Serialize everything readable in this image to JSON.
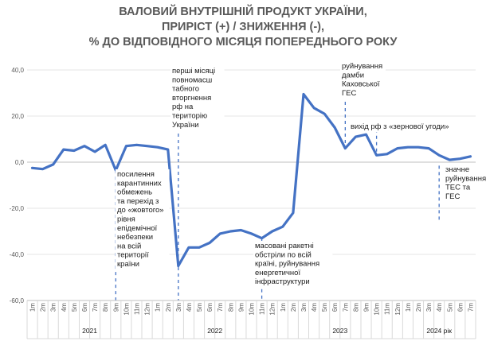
{
  "chart_data": {
    "type": "line",
    "title_lines": [
      "ВАЛОВИЙ ВНУТРІШНІЙ ПРОДУКТ УКРАЇНИ,",
      "ПРИРІСТ (+) / ЗНИЖЕННЯ (-),",
      "%  ДО ВІДПОВІДНОГО МІСЯЦЯ ПОПЕРЕДНЬОГО РОКУ"
    ],
    "ylim": [
      -60,
      40
    ],
    "y_ticks": [
      "40,0",
      "20,0",
      "0,0",
      "-20,0",
      "-40,0",
      "-60,0"
    ],
    "categories": [
      "1m",
      "2m",
      "3m",
      "4m",
      "5m",
      "6m",
      "7m",
      "8m",
      "9m",
      "10m",
      "11m",
      "12m",
      "1m",
      "2m",
      "3m",
      "4m",
      "5m",
      "6m",
      "7m",
      "8m",
      "9m",
      "10m",
      "11m",
      "12m",
      "1m",
      "2m",
      "3m",
      "4m",
      "5m",
      "6m",
      "7m",
      "8m",
      "9m",
      "10m",
      "11m",
      "12m",
      "1m",
      "2m",
      "3m",
      "4m",
      "5m",
      "6m",
      "7m"
    ],
    "year_labels": [
      {
        "label": "2021",
        "start": 0,
        "end": 11
      },
      {
        "label": "2022",
        "start": 12,
        "end": 23
      },
      {
        "label": "2023",
        "start": 24,
        "end": 35
      },
      {
        "label": "2024 рік",
        "start": 36,
        "end": 42
      }
    ],
    "series": [
      {
        "values": [
          -2.5,
          -3.0,
          -1.0,
          5.5,
          5.0,
          7.0,
          4.5,
          7.5,
          -3.5,
          7.0,
          7.5,
          7.0,
          6.5,
          5.5,
          -45.0,
          -37.0,
          -37.0,
          -35.0,
          -31.0,
          -30.0,
          -29.5,
          -31.0,
          -33.0,
          -30.0,
          -28.0,
          -22.0,
          29.5,
          23.5,
          21.0,
          15.0,
          6.0,
          11.0,
          12.0,
          3.0,
          3.5,
          6.0,
          6.5,
          6.5,
          6.0,
          3.0,
          1.0,
          1.5,
          2.5
        ]
      }
    ],
    "color": "#4472c4",
    "annotations": [
      {
        "text_lines": [
          "посилення",
          "карантинних",
          "обмежень",
          "та перехід з",
          "до «жовтого»",
          "рівня",
          "епідемічної",
          "небезпеки",
          "на всій",
          "території",
          "країни"
        ]
      },
      {
        "text_lines": [
          "перші місяці",
          "повномасш",
          "табного",
          "вторгнення",
          "рф на",
          "територію",
          "України"
        ]
      },
      {
        "text_lines": [
          "масовані ракетні",
          "обстріли по всій",
          "країні, руйнування",
          "енергетичної",
          "інфраструктури"
        ]
      },
      {
        "text_lines": [
          "руйнування",
          "дамби",
          "Каховської",
          "ГЕС"
        ]
      },
      {
        "text_lines": [
          "вихід рф з «зернової угоди»"
        ]
      },
      {
        "text_lines": [
          "значне",
          "руйнування",
          "ТЕС та",
          "ГЕС"
        ]
      }
    ]
  }
}
